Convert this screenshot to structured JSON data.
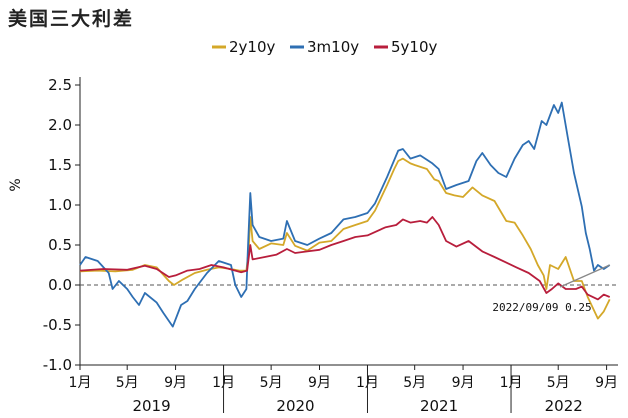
{
  "chart_data": {
    "type": "line",
    "title": "美国三大利差",
    "ylabel": "%",
    "ylim": [
      -1.0,
      2.5
    ],
    "yticks": [
      "2.5",
      "2.0",
      "1.5",
      "1.0",
      "0.5",
      "0.0",
      "-0.5",
      "-1.0"
    ],
    "zero_line": "dashed",
    "grid": false,
    "legend_position": "top-center",
    "xlim": [
      "2019-01-01",
      "2022-09-30"
    ],
    "month_ticks": [
      {
        "date": "2019-01-01",
        "label": "1月"
      },
      {
        "date": "2019-05-01",
        "label": "5月"
      },
      {
        "date": "2019-09-01",
        "label": "9月"
      },
      {
        "date": "2020-01-01",
        "label": "1月"
      },
      {
        "date": "2020-05-01",
        "label": "5月"
      },
      {
        "date": "2020-09-01",
        "label": "9月"
      },
      {
        "date": "2021-01-01",
        "label": "1月"
      },
      {
        "date": "2021-05-01",
        "label": "5月"
      },
      {
        "date": "2021-09-01",
        "label": "9月"
      },
      {
        "date": "2022-01-01",
        "label": "1月"
      },
      {
        "date": "2022-05-01",
        "label": "5月"
      },
      {
        "date": "2022-09-01",
        "label": "9月"
      }
    ],
    "year_labels": [
      {
        "label": "2019",
        "center": "2019-07-02"
      },
      {
        "label": "2020",
        "center": "2020-07-02"
      },
      {
        "label": "2021",
        "center": "2021-07-02"
      },
      {
        "label": "2022",
        "center": "2022-05-15"
      }
    ],
    "series": [
      {
        "name": "2y10y",
        "color": "#D4A829",
        "points": [
          [
            "2019-01-01",
            0.17
          ],
          [
            "2019-02-15",
            0.18
          ],
          [
            "2019-04-01",
            0.17
          ],
          [
            "2019-05-15",
            0.19
          ],
          [
            "2019-06-15",
            0.25
          ],
          [
            "2019-07-15",
            0.22
          ],
          [
            "2019-08-15",
            0.05
          ],
          [
            "2019-08-28",
            0.0
          ],
          [
            "2019-09-20",
            0.07
          ],
          [
            "2019-10-20",
            0.15
          ],
          [
            "2019-11-20",
            0.19
          ],
          [
            "2019-12-20",
            0.22
          ],
          [
            "2020-01-20",
            0.2
          ],
          [
            "2020-02-10",
            0.18
          ],
          [
            "2020-02-28",
            0.18
          ],
          [
            "2020-03-05",
            0.45
          ],
          [
            "2020-03-09",
            0.85
          ],
          [
            "2020-03-15",
            0.55
          ],
          [
            "2020-04-01",
            0.45
          ],
          [
            "2020-05-01",
            0.52
          ],
          [
            "2020-06-01",
            0.5
          ],
          [
            "2020-06-10",
            0.65
          ],
          [
            "2020-07-01",
            0.49
          ],
          [
            "2020-08-01",
            0.43
          ],
          [
            "2020-09-01",
            0.53
          ],
          [
            "2020-10-01",
            0.55
          ],
          [
            "2020-11-01",
            0.7
          ],
          [
            "2020-12-01",
            0.75
          ],
          [
            "2021-01-01",
            0.8
          ],
          [
            "2021-01-20",
            0.93
          ],
          [
            "2021-02-20",
            1.25
          ],
          [
            "2021-03-10",
            1.45
          ],
          [
            "2021-03-20",
            1.55
          ],
          [
            "2021-04-01",
            1.58
          ],
          [
            "2021-04-20",
            1.52
          ],
          [
            "2021-05-01",
            1.5
          ],
          [
            "2021-06-01",
            1.45
          ],
          [
            "2021-06-20",
            1.32
          ],
          [
            "2021-07-01",
            1.3
          ],
          [
            "2021-07-20",
            1.15
          ],
          [
            "2021-08-10",
            1.12
          ],
          [
            "2021-09-01",
            1.1
          ],
          [
            "2021-09-25",
            1.22
          ],
          [
            "2021-10-20",
            1.12
          ],
          [
            "2021-11-20",
            1.05
          ],
          [
            "2021-12-20",
            0.8
          ],
          [
            "2022-01-10",
            0.78
          ],
          [
            "2022-01-31",
            0.62
          ],
          [
            "2022-02-20",
            0.45
          ],
          [
            "2022-03-10",
            0.25
          ],
          [
            "2022-03-25",
            0.12
          ],
          [
            "2022-04-01",
            -0.05
          ],
          [
            "2022-04-10",
            0.25
          ],
          [
            "2022-05-01",
            0.2
          ],
          [
            "2022-05-20",
            0.35
          ],
          [
            "2022-06-10",
            0.05
          ],
          [
            "2022-06-30",
            0.05
          ],
          [
            "2022-07-15",
            -0.15
          ],
          [
            "2022-08-10",
            -0.42
          ],
          [
            "2022-08-25",
            -0.33
          ],
          [
            "2022-09-09",
            -0.18
          ]
        ]
      },
      {
        "name": "3m10y",
        "color": "#2E6FB3",
        "points": [
          [
            "2019-01-01",
            0.25
          ],
          [
            "2019-01-15",
            0.35
          ],
          [
            "2019-02-15",
            0.3
          ],
          [
            "2019-03-15",
            0.15
          ],
          [
            "2019-03-25",
            -0.05
          ],
          [
            "2019-04-10",
            0.05
          ],
          [
            "2019-05-01",
            -0.05
          ],
          [
            "2019-05-15",
            -0.15
          ],
          [
            "2019-05-31",
            -0.25
          ],
          [
            "2019-06-15",
            -0.1
          ],
          [
            "2019-07-15",
            -0.22
          ],
          [
            "2019-08-01",
            -0.35
          ],
          [
            "2019-08-25",
            -0.52
          ],
          [
            "2019-09-15",
            -0.25
          ],
          [
            "2019-10-01",
            -0.2
          ],
          [
            "2019-10-20",
            -0.05
          ],
          [
            "2019-11-20",
            0.15
          ],
          [
            "2019-12-20",
            0.3
          ],
          [
            "2020-01-20",
            0.25
          ],
          [
            "2020-01-31",
            0.0
          ],
          [
            "2020-02-15",
            -0.15
          ],
          [
            "2020-02-28",
            -0.05
          ],
          [
            "2020-03-03",
            0.45
          ],
          [
            "2020-03-09",
            1.15
          ],
          [
            "2020-03-15",
            0.75
          ],
          [
            "2020-04-01",
            0.6
          ],
          [
            "2020-05-01",
            0.55
          ],
          [
            "2020-06-01",
            0.58
          ],
          [
            "2020-06-10",
            0.8
          ],
          [
            "2020-07-01",
            0.55
          ],
          [
            "2020-08-01",
            0.5
          ],
          [
            "2020-09-01",
            0.58
          ],
          [
            "2020-10-01",
            0.65
          ],
          [
            "2020-11-01",
            0.82
          ],
          [
            "2020-12-01",
            0.85
          ],
          [
            "2021-01-01",
            0.9
          ],
          [
            "2021-01-20",
            1.02
          ],
          [
            "2021-02-20",
            1.35
          ],
          [
            "2021-03-20",
            1.68
          ],
          [
            "2021-04-01",
            1.7
          ],
          [
            "2021-04-20",
            1.58
          ],
          [
            "2021-05-15",
            1.62
          ],
          [
            "2021-06-15",
            1.52
          ],
          [
            "2021-07-01",
            1.45
          ],
          [
            "2021-07-20",
            1.2
          ],
          [
            "2021-08-15",
            1.25
          ],
          [
            "2021-09-15",
            1.3
          ],
          [
            "2021-10-05",
            1.55
          ],
          [
            "2021-10-20",
            1.65
          ],
          [
            "2021-11-10",
            1.5
          ],
          [
            "2021-11-30",
            1.4
          ],
          [
            "2021-12-20",
            1.35
          ],
          [
            "2022-01-10",
            1.58
          ],
          [
            "2022-01-31",
            1.75
          ],
          [
            "2022-02-15",
            1.8
          ],
          [
            "2022-03-01",
            1.7
          ],
          [
            "2022-03-20",
            2.05
          ],
          [
            "2022-04-01",
            2.0
          ],
          [
            "2022-04-20",
            2.25
          ],
          [
            "2022-05-01",
            2.15
          ],
          [
            "2022-05-10",
            2.28
          ],
          [
            "2022-05-25",
            1.85
          ],
          [
            "2022-06-10",
            1.4
          ],
          [
            "2022-06-30",
            0.98
          ],
          [
            "2022-07-10",
            0.65
          ],
          [
            "2022-07-20",
            0.45
          ],
          [
            "2022-07-31",
            0.18
          ],
          [
            "2022-08-10",
            0.25
          ],
          [
            "2022-08-25",
            0.2
          ],
          [
            "2022-09-09",
            0.25
          ]
        ]
      },
      {
        "name": "5y10y",
        "color": "#B81E3C",
        "points": [
          [
            "2019-01-01",
            0.18
          ],
          [
            "2019-03-01",
            0.2
          ],
          [
            "2019-05-01",
            0.19
          ],
          [
            "2019-06-15",
            0.24
          ],
          [
            "2019-07-15",
            0.2
          ],
          [
            "2019-08-15",
            0.1
          ],
          [
            "2019-09-01",
            0.12
          ],
          [
            "2019-10-01",
            0.18
          ],
          [
            "2019-11-01",
            0.2
          ],
          [
            "2019-12-01",
            0.25
          ],
          [
            "2020-01-01",
            0.22
          ],
          [
            "2020-02-15",
            0.16
          ],
          [
            "2020-03-01",
            0.18
          ],
          [
            "2020-03-09",
            0.5
          ],
          [
            "2020-03-15",
            0.32
          ],
          [
            "2020-04-15",
            0.35
          ],
          [
            "2020-05-15",
            0.38
          ],
          [
            "2020-06-10",
            0.45
          ],
          [
            "2020-07-01",
            0.4
          ],
          [
            "2020-08-01",
            0.42
          ],
          [
            "2020-09-01",
            0.44
          ],
          [
            "2020-10-01",
            0.5
          ],
          [
            "2020-11-01",
            0.55
          ],
          [
            "2020-12-01",
            0.6
          ],
          [
            "2021-01-01",
            0.62
          ],
          [
            "2021-02-15",
            0.72
          ],
          [
            "2021-03-15",
            0.75
          ],
          [
            "2021-04-01",
            0.82
          ],
          [
            "2021-04-20",
            0.78
          ],
          [
            "2021-05-15",
            0.8
          ],
          [
            "2021-06-01",
            0.78
          ],
          [
            "2021-06-15",
            0.85
          ],
          [
            "2021-07-01",
            0.75
          ],
          [
            "2021-07-20",
            0.55
          ],
          [
            "2021-08-15",
            0.48
          ],
          [
            "2021-09-15",
            0.55
          ],
          [
            "2021-10-20",
            0.42
          ],
          [
            "2021-11-20",
            0.35
          ],
          [
            "2021-12-20",
            0.28
          ],
          [
            "2022-01-15",
            0.22
          ],
          [
            "2022-02-15",
            0.15
          ],
          [
            "2022-03-15",
            0.05
          ],
          [
            "2022-04-01",
            -0.1
          ],
          [
            "2022-04-15",
            -0.05
          ],
          [
            "2022-05-01",
            0.02
          ],
          [
            "2022-05-20",
            -0.05
          ],
          [
            "2022-06-15",
            -0.05
          ],
          [
            "2022-06-30",
            -0.02
          ],
          [
            "2022-07-15",
            -0.12
          ],
          [
            "2022-08-10",
            -0.18
          ],
          [
            "2022-08-25",
            -0.12
          ],
          [
            "2022-09-09",
            -0.15
          ]
        ]
      }
    ],
    "annotation": {
      "text": "2022/09/09  0.25",
      "date": "2022-09-09",
      "value": 0.25,
      "arrow_color": "#888888"
    }
  }
}
